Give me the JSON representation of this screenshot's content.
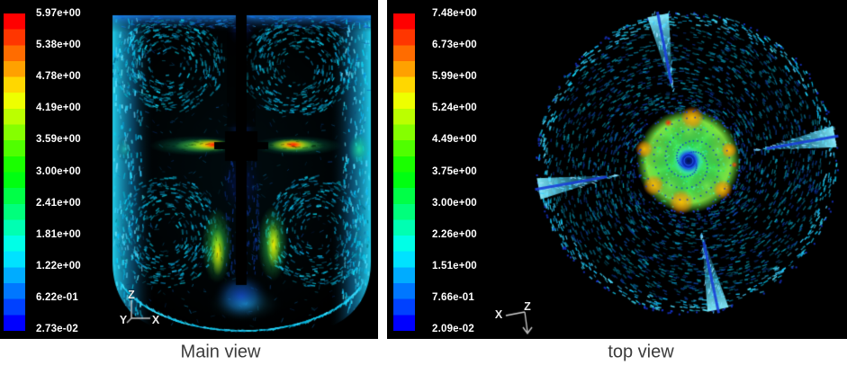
{
  "figure": {
    "background": "#ffffff",
    "panel_background": "#000000"
  },
  "panels": {
    "main": {
      "caption": "Main view",
      "colorbar_labels": [
        "5.97e+00",
        "5.38e+00",
        "4.78e+00",
        "4.19e+00",
        "3.59e+00",
        "3.00e+00",
        "2.41e+00",
        "1.81e+00",
        "1.22e+00",
        "6.22e-01",
        "2.73e-02"
      ],
      "triad": {
        "up_label": "Z",
        "right_label": "X",
        "diag_label": "Y"
      }
    },
    "top": {
      "caption": "top view",
      "colorbar_labels": [
        "7.48e+00",
        "6.73e+00",
        "5.99e+00",
        "5.24e+00",
        "4.49e+00",
        "3.75e+00",
        "3.00e+00",
        "2.26e+00",
        "1.51e+00",
        "7.66e-01",
        "2.09e-02"
      ],
      "triad": {
        "origin_label": "Z",
        "left_label": "X"
      }
    }
  },
  "colormap": [
    "#ff0000",
    "#ff3600",
    "#ff6c00",
    "#ffa100",
    "#ffd700",
    "#eeff00",
    "#bbff00",
    "#85ff00",
    "#50ff00",
    "#1aff00",
    "#00ff11",
    "#00ff47",
    "#00ff7c",
    "#00ffb2",
    "#00ffe7",
    "#00e2ff",
    "#00acff",
    "#0077ff",
    "#0041ff",
    "#0000ff"
  ],
  "colors": {
    "tick_label": "#ffffff",
    "caption_text": "#3b3b3b",
    "vector_cyan": "#23d9f2",
    "baffle_blue": "#1a3fd8",
    "jet_red": "#ff1e00",
    "jet_orange": "#ff7800",
    "jet_yellow": "#ffd700",
    "plume_green": "#3ce05c",
    "impeller_green": "#45e055",
    "vortex_core_navy": "#0a1f9e"
  },
  "chart_data": [
    {
      "type": "vector-field",
      "title": "Main view",
      "view": "side view of a baffled stirred tank with central shaft and two impellers, dished bottom",
      "legend_position": "left",
      "colorbar": {
        "min": 0.0273,
        "max": 5.97,
        "segments": 20,
        "tick_values": [
          5.97,
          5.38,
          4.78,
          4.19,
          3.59,
          3.0,
          2.41,
          1.81,
          1.22,
          0.622,
          0.0273
        ]
      },
      "axes": {
        "up": "Z",
        "right": "X",
        "out_of_plane": "Y"
      },
      "features": [
        "high-velocity radial impeller jets (red/orange core ~4.2-6.0) at mid-height on both sides of the shaft",
        "two green-yellow axial plumes (~2.4-4.2) beside the lower shaft tip",
        "bright cyan wall/top/bottom boundary streams (~0.6-1.8)",
        "large dark recirculation vortices above and below the jets",
        "blue low-velocity fan (~0.03-0.6) under the shaft tip"
      ]
    },
    {
      "type": "vector-field",
      "title": "top view",
      "view": "top view of the cylindrical tank cross-section at impeller level",
      "legend_position": "left",
      "colorbar": {
        "min": 0.0209,
        "max": 7.48,
        "segments": 20,
        "tick_values": [
          7.48,
          6.73,
          5.99,
          5.24,
          4.49,
          3.75,
          3.0,
          2.26,
          1.51,
          0.766,
          0.0209
        ]
      },
      "axes": {
        "left": "X",
        "down": "Z"
      },
      "features": [
        "central impeller swirl disc (green ~3.0-4.5) with yellow/orange rim patches (~5.2-6.7) and red specks",
        "dark navy vortex core with dotted blue spiral arms at the center",
        "tangential teal/cyan vector rings (~0.8-2.3) filling the vessel",
        "four bright cyan baffle jets with dark blue baffle lines spaced ~90 degrees"
      ]
    }
  ]
}
